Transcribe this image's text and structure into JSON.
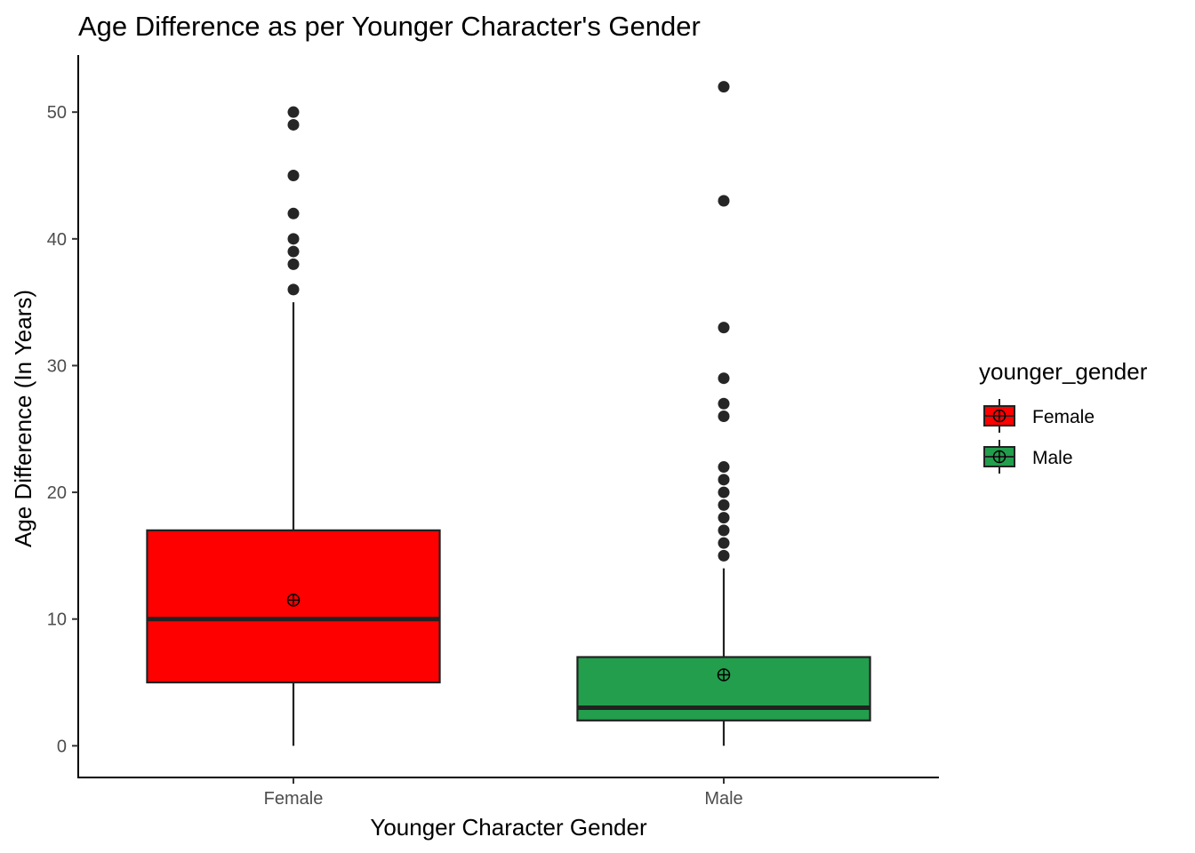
{
  "chart_data": {
    "type": "boxplot",
    "title": "Age Difference as per Younger Character's Gender",
    "xlabel": "Younger Character Gender",
    "ylabel": "Age Difference (In Years)",
    "ylim": [
      -2.5,
      54.5
    ],
    "yticks": [
      0,
      10,
      20,
      30,
      40,
      50
    ],
    "ytick_labels": [
      "0",
      "10",
      "20",
      "30",
      "40",
      "50"
    ],
    "grid": false,
    "legend": {
      "title": "younger_gender",
      "position": "right",
      "entries": [
        "Female",
        "Male"
      ]
    },
    "series": [
      {
        "category": "Female",
        "color": "#ff0000",
        "whisker_low": 0,
        "q1": 5,
        "median": 10,
        "q3": 17,
        "whisker_high": 35,
        "mean": 11.5,
        "outliers": [
          36,
          38,
          39,
          40,
          42,
          45,
          49,
          50
        ]
      },
      {
        "category": "Male",
        "color": "#229e4d",
        "whisker_low": 0,
        "q1": 2,
        "median": 3,
        "q3": 7,
        "whisker_high": 14,
        "mean": 5.6,
        "outliers": [
          15,
          16,
          17,
          18,
          19,
          20,
          21,
          22,
          26,
          27,
          29,
          33,
          43,
          52
        ]
      }
    ]
  }
}
